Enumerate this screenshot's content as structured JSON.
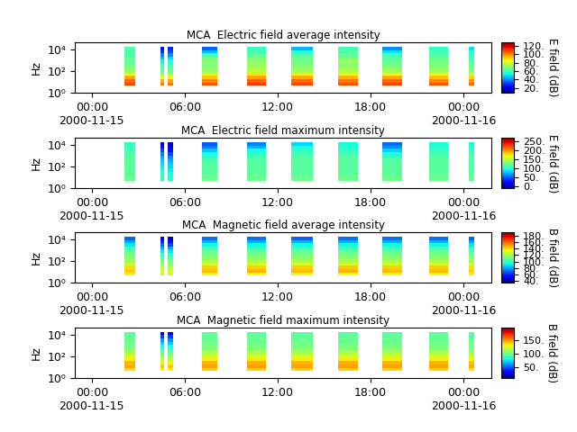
{
  "chart_data": [
    {
      "type": "heatmap",
      "title": "MCA  Electric field average intensity",
      "y_label": "Hz",
      "log": "y",
      "xlim": [
        "2000-11-14T22:55",
        "2000-11-16T01:48"
      ],
      "xticks": [
        {
          "value": "2000-11-15T00:00",
          "label": "00:00\n2000-11-15"
        },
        {
          "value": "2000-11-15T06:00",
          "label": "06:00"
        },
        {
          "value": "2000-11-15T12:00",
          "label": "12:00"
        },
        {
          "value": "2000-11-15T18:00",
          "label": "18:00"
        },
        {
          "value": "2000-11-16T00:00",
          "label": "00:00\n2000-11-16"
        }
      ],
      "ylim": [
        1,
        46000
      ],
      "yticks": [
        {
          "value": 1,
          "label": "10⁰"
        },
        {
          "value": 100,
          "label": "10²"
        },
        {
          "value": 10000,
          "label": "10⁴"
        }
      ],
      "freq_edges": [
        4.5,
        9,
        18,
        36,
        71,
        142,
        283,
        566,
        1131,
        2262,
        4525,
        9050,
        18100
      ],
      "segments": [
        {
          "start": "2000-11-15T02:05",
          "end": "2000-11-15T02:48"
        },
        {
          "start": "2000-11-15T04:25",
          "end": "2000-11-15T04:39"
        },
        {
          "start": "2000-11-15T04:53",
          "end": "2000-11-15T05:14"
        },
        {
          "start": "2000-11-15T07:05",
          "end": "2000-11-15T08:05"
        },
        {
          "start": "2000-11-15T10:00",
          "end": "2000-11-15T11:13"
        },
        {
          "start": "2000-11-15T12:51",
          "end": "2000-11-15T14:15"
        },
        {
          "start": "2000-11-15T15:52",
          "end": "2000-11-15T17:09"
        },
        {
          "start": "2000-11-15T18:43",
          "end": "2000-11-15T20:03"
        },
        {
          "start": "2000-11-15T21:45",
          "end": "2000-11-15T22:58"
        },
        {
          "start": "2000-11-16T00:21",
          "end": "2000-11-16T00:39"
        }
      ],
      "cells": [
        [
          108,
          104,
          95,
          85,
          72,
          68,
          66,
          65,
          64,
          62,
          60,
          62
        ],
        [
          100,
          95,
          85,
          72,
          65,
          62,
          58,
          52,
          45,
          38,
          30,
          25
        ],
        [
          102,
          96,
          86,
          74,
          66,
          62,
          58,
          54,
          48,
          40,
          32,
          28
        ],
        [
          106,
          100,
          92,
          82,
          72,
          70,
          68,
          70,
          66,
          60,
          45,
          35
        ],
        [
          110,
          105,
          96,
          88,
          78,
          74,
          72,
          70,
          68,
          64,
          60,
          58
        ],
        [
          108,
          104,
          95,
          86,
          75,
          70,
          68,
          66,
          66,
          62,
          55,
          45
        ],
        [
          106,
          102,
          94,
          84,
          76,
          72,
          70,
          72,
          68,
          64,
          62,
          60
        ],
        [
          108,
          104,
          95,
          85,
          74,
          70,
          66,
          64,
          62,
          60,
          50,
          40
        ],
        [
          106,
          100,
          92,
          84,
          74,
          70,
          68,
          66,
          64,
          62,
          60,
          58
        ],
        [
          104,
          98,
          90,
          80,
          70,
          66,
          64,
          62,
          60,
          58,
          55,
          50
        ]
      ],
      "colorbar": {
        "label": "E field (dB)",
        "range": [
          8,
          128
        ],
        "ticks": [
          {
            "value": 20,
            "label": "20."
          },
          {
            "value": 40,
            "label": "40."
          },
          {
            "value": 60,
            "label": "60."
          },
          {
            "value": 80,
            "label": "80."
          },
          {
            "value": 100,
            "label": "100."
          },
          {
            "value": 120,
            "label": "120."
          }
        ]
      }
    },
    {
      "type": "heatmap",
      "title": "MCA  Electric field maximum intensity",
      "y_label": "Hz",
      "log": "y",
      "xlim": [
        "2000-11-14T22:55",
        "2000-11-16T01:48"
      ],
      "xticks": [
        {
          "value": "2000-11-15T00:00",
          "label": "00:00\n2000-11-15"
        },
        {
          "value": "2000-11-15T06:00",
          "label": "06:00"
        },
        {
          "value": "2000-11-15T12:00",
          "label": "12:00"
        },
        {
          "value": "2000-11-15T18:00",
          "label": "18:00"
        },
        {
          "value": "2000-11-16T00:00",
          "label": "00:00\n2000-11-16"
        }
      ],
      "ylim": [
        1,
        46000
      ],
      "yticks": [
        {
          "value": 1,
          "label": "10⁰"
        },
        {
          "value": 100,
          "label": "10²"
        },
        {
          "value": 10000,
          "label": "10⁴"
        }
      ],
      "freq_edges": [
        4.5,
        9,
        18,
        36,
        71,
        142,
        283,
        566,
        1131,
        2262,
        4525,
        9050,
        18100
      ],
      "segments": [
        {
          "start": "2000-11-15T02:05",
          "end": "2000-11-15T02:48"
        },
        {
          "start": "2000-11-15T04:25",
          "end": "2000-11-15T04:39"
        },
        {
          "start": "2000-11-15T04:53",
          "end": "2000-11-15T05:14"
        },
        {
          "start": "2000-11-15T07:05",
          "end": "2000-11-15T08:05"
        },
        {
          "start": "2000-11-15T10:00",
          "end": "2000-11-15T11:13"
        },
        {
          "start": "2000-11-15T12:51",
          "end": "2000-11-15T14:15"
        },
        {
          "start": "2000-11-15T15:52",
          "end": "2000-11-15T17:09"
        },
        {
          "start": "2000-11-15T18:43",
          "end": "2000-11-15T20:03"
        },
        {
          "start": "2000-11-15T21:45",
          "end": "2000-11-15T22:58"
        },
        {
          "start": "2000-11-16T00:21",
          "end": "2000-11-16T00:39"
        }
      ],
      "cells": [
        [
          125,
          122,
          120,
          118,
          118,
          118,
          118,
          118,
          115,
          112,
          108,
          105
        ],
        [
          110,
          105,
          100,
          95,
          90,
          85,
          80,
          70,
          60,
          45,
          30,
          20
        ],
        [
          105,
          100,
          95,
          90,
          85,
          80,
          70,
          60,
          45,
          30,
          15,
          5
        ],
        [
          125,
          122,
          120,
          118,
          118,
          115,
          112,
          105,
          95,
          80,
          60,
          50
        ],
        [
          125,
          122,
          120,
          118,
          118,
          118,
          115,
          112,
          105,
          95,
          75,
          60
        ],
        [
          125,
          122,
          120,
          118,
          118,
          118,
          118,
          115,
          110,
          105,
          95,
          85
        ],
        [
          125,
          122,
          120,
          118,
          118,
          118,
          118,
          116,
          112,
          108,
          100,
          95
        ],
        [
          125,
          122,
          120,
          118,
          118,
          118,
          115,
          110,
          100,
          85,
          65,
          55
        ],
        [
          125,
          122,
          120,
          118,
          118,
          118,
          118,
          116,
          112,
          108,
          102,
          98
        ],
        [
          122,
          120,
          118,
          116,
          116,
          116,
          116,
          114,
          112,
          108,
          100,
          95
        ]
      ],
      "colorbar": {
        "label": "E field (dB)",
        "range": [
          -10,
          270
        ],
        "ticks": [
          {
            "value": 0,
            "label": "0."
          },
          {
            "value": 50,
            "label": "50."
          },
          {
            "value": 100,
            "label": "100."
          },
          {
            "value": 150,
            "label": "150."
          },
          {
            "value": 200,
            "label": "200."
          },
          {
            "value": 250,
            "label": "250."
          }
        ]
      }
    },
    {
      "type": "heatmap",
      "title": "MCA  Magnetic field average intensity",
      "y_label": "Hz",
      "log": "y",
      "xlim": [
        "2000-11-14T22:55",
        "2000-11-16T01:48"
      ],
      "xticks": [
        {
          "value": "2000-11-15T00:00",
          "label": "00:00\n2000-11-15"
        },
        {
          "value": "2000-11-15T06:00",
          "label": "06:00"
        },
        {
          "value": "2000-11-15T12:00",
          "label": "12:00"
        },
        {
          "value": "2000-11-15T18:00",
          "label": "18:00"
        },
        {
          "value": "2000-11-16T00:00",
          "label": "00:00\n2000-11-16"
        }
      ],
      "ylim": [
        1,
        46000
      ],
      "yticks": [
        {
          "value": 1,
          "label": "10⁰"
        },
        {
          "value": 100,
          "label": "10²"
        },
        {
          "value": 10000,
          "label": "10⁴"
        }
      ],
      "freq_edges": [
        4.5,
        9,
        18,
        36,
        71,
        142,
        283,
        566,
        1131,
        2262,
        4525,
        9050,
        18100
      ],
      "segments": [
        {
          "start": "2000-11-15T02:05",
          "end": "2000-11-15T02:48"
        },
        {
          "start": "2000-11-15T04:25",
          "end": "2000-11-15T04:39"
        },
        {
          "start": "2000-11-15T04:53",
          "end": "2000-11-15T05:14"
        },
        {
          "start": "2000-11-15T07:05",
          "end": "2000-11-15T08:05"
        },
        {
          "start": "2000-11-15T10:00",
          "end": "2000-11-15T11:13"
        },
        {
          "start": "2000-11-15T12:51",
          "end": "2000-11-15T14:15"
        },
        {
          "start": "2000-11-15T15:52",
          "end": "2000-11-15T17:09"
        },
        {
          "start": "2000-11-15T18:43",
          "end": "2000-11-15T20:03"
        },
        {
          "start": "2000-11-15T21:45",
          "end": "2000-11-15T22:58"
        },
        {
          "start": "2000-11-16T00:21",
          "end": "2000-11-16T00:39"
        }
      ],
      "cells": [
        [
          130,
          142,
          140,
          125,
          118,
          115,
          112,
          108,
          100,
          90,
          80,
          70
        ],
        [
          125,
          130,
          125,
          115,
          110,
          105,
          100,
          90,
          80,
          70,
          60,
          50
        ],
        [
          125,
          130,
          125,
          115,
          110,
          105,
          100,
          90,
          80,
          65,
          55,
          45
        ],
        [
          132,
          145,
          142,
          128,
          120,
          116,
          112,
          108,
          100,
          92,
          82,
          72
        ],
        [
          134,
          146,
          142,
          128,
          120,
          116,
          112,
          108,
          100,
          92,
          82,
          72
        ],
        [
          132,
          145,
          142,
          128,
          120,
          116,
          112,
          108,
          100,
          92,
          82,
          70
        ],
        [
          134,
          146,
          143,
          128,
          120,
          116,
          112,
          108,
          100,
          92,
          82,
          72
        ],
        [
          132,
          145,
          142,
          128,
          120,
          116,
          112,
          108,
          100,
          92,
          82,
          72
        ],
        [
          133,
          145,
          142,
          128,
          120,
          116,
          112,
          108,
          100,
          92,
          82,
          72
        ],
        [
          130,
          142,
          140,
          126,
          118,
          114,
          110,
          106,
          98,
          90,
          80,
          70
        ]
      ],
      "colorbar": {
        "label": "B field (dB)",
        "range": [
          35,
          190
        ],
        "ticks": [
          {
            "value": 40,
            "label": "40."
          },
          {
            "value": 60,
            "label": "60."
          },
          {
            "value": 80,
            "label": "80."
          },
          {
            "value": 100,
            "label": "100."
          },
          {
            "value": 120,
            "label": "120."
          },
          {
            "value": 140,
            "label": "140."
          },
          {
            "value": 160,
            "label": "160."
          },
          {
            "value": 180,
            "label": "180."
          }
        ]
      }
    },
    {
      "type": "heatmap",
      "title": "MCA  Magnetic field maximum intensity",
      "y_label": "Hz",
      "log": "y",
      "xlim": [
        "2000-11-14T22:55",
        "2000-11-16T01:48"
      ],
      "xticks": [
        {
          "value": "2000-11-15T00:00",
          "label": "00:00\n2000-11-15"
        },
        {
          "value": "2000-11-15T06:00",
          "label": "06:00"
        },
        {
          "value": "2000-11-15T12:00",
          "label": "12:00"
        },
        {
          "value": "2000-11-15T18:00",
          "label": "18:00"
        },
        {
          "value": "2000-11-16T00:00",
          "label": "00:00\n2000-11-16"
        }
      ],
      "ylim": [
        1,
        46000
      ],
      "yticks": [
        {
          "value": 1,
          "label": "10⁰"
        },
        {
          "value": 100,
          "label": "10²"
        },
        {
          "value": 10000,
          "label": "10⁴"
        }
      ],
      "freq_edges": [
        4.5,
        9,
        18,
        36,
        71,
        142,
        283,
        566,
        1131,
        2262,
        4525,
        9050,
        18100
      ],
      "segments": [
        {
          "start": "2000-11-15T02:05",
          "end": "2000-11-15T02:48"
        },
        {
          "start": "2000-11-15T04:25",
          "end": "2000-11-15T04:39"
        },
        {
          "start": "2000-11-15T04:53",
          "end": "2000-11-15T05:14"
        },
        {
          "start": "2000-11-15T07:05",
          "end": "2000-11-15T08:05"
        },
        {
          "start": "2000-11-15T10:00",
          "end": "2000-11-15T11:13"
        },
        {
          "start": "2000-11-15T12:51",
          "end": "2000-11-15T14:15"
        },
        {
          "start": "2000-11-15T15:52",
          "end": "2000-11-15T17:09"
        },
        {
          "start": "2000-11-15T18:43",
          "end": "2000-11-15T20:03"
        },
        {
          "start": "2000-11-15T21:45",
          "end": "2000-11-15T22:58"
        },
        {
          "start": "2000-11-16T00:21",
          "end": "2000-11-16T00:39"
        }
      ],
      "cells": [
        [
          135,
          145,
          142,
          132,
          120,
          112,
          105,
          102,
          100,
          98,
          96,
          95
        ],
        [
          130,
          138,
          130,
          118,
          105,
          98,
          90,
          80,
          70,
          60,
          45,
          30
        ],
        [
          130,
          138,
          130,
          118,
          105,
          98,
          90,
          80,
          70,
          60,
          45,
          30
        ],
        [
          136,
          146,
          143,
          132,
          120,
          112,
          105,
          102,
          100,
          98,
          96,
          95
        ],
        [
          137,
          147,
          144,
          133,
          121,
          113,
          106,
          102,
          100,
          98,
          96,
          95
        ],
        [
          136,
          146,
          143,
          132,
          120,
          112,
          105,
          102,
          100,
          98,
          96,
          95
        ],
        [
          137,
          147,
          144,
          133,
          121,
          113,
          106,
          102,
          100,
          98,
          96,
          95
        ],
        [
          136,
          146,
          143,
          132,
          120,
          112,
          105,
          102,
          100,
          98,
          96,
          95
        ],
        [
          136,
          146,
          143,
          132,
          120,
          112,
          105,
          102,
          100,
          98,
          96,
          95
        ],
        [
          134,
          144,
          140,
          130,
          118,
          110,
          104,
          101,
          99,
          97,
          95,
          94
        ]
      ],
      "colorbar": {
        "label": "B field (dB)",
        "range": [
          10,
          195
        ],
        "ticks": [
          {
            "value": 50,
            "label": "50."
          },
          {
            "value": 100,
            "label": "100."
          },
          {
            "value": 150,
            "label": "150."
          }
        ]
      }
    }
  ]
}
